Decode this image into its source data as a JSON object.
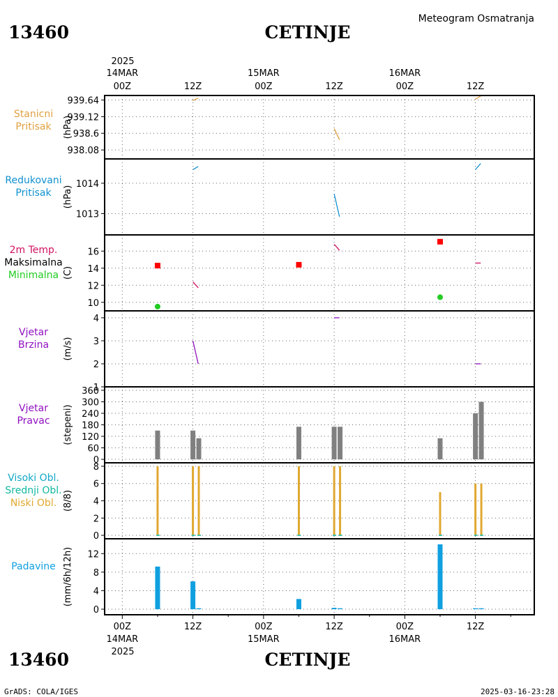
{
  "header": {
    "station_id": "13460",
    "station_name": "CETINJE",
    "subtitle": "Meteogram Osmatranja"
  },
  "footer": {
    "credit": "GrADS: COLA/IGES",
    "timestamp": "2025-03-16-23:28"
  },
  "time_axis": {
    "year": "2025",
    "labels": [
      {
        "t": 0,
        "hour": "00Z",
        "date": "14MAR"
      },
      {
        "t": 12,
        "hour": "12Z",
        "date": ""
      },
      {
        "t": 24,
        "hour": "00Z",
        "date": "15MAR"
      },
      {
        "t": 36,
        "hour": "12Z",
        "date": ""
      },
      {
        "t": 48,
        "hour": "00Z",
        "date": "16MAR"
      },
      {
        "t": 60,
        "hour": "12Z",
        "date": ""
      }
    ],
    "range_hours": [
      -3,
      70
    ]
  },
  "colors": {
    "pressure_station": "#e0a040",
    "pressure_reduced": "#1090d0",
    "temp_label": "#d01060",
    "temp_max": "#ff0000",
    "temp_min": "#22cc22",
    "wind": "#9010c0",
    "wind_dir_bar": "#808080",
    "cloud_high": "#10a8c8",
    "cloud_mid": "#10b8a0",
    "cloud_low": "#e0a830",
    "precip": "#10a0e0"
  },
  "chart_data": [
    {
      "type": "line",
      "panel": "stanicni-pritisak",
      "labels": [
        "Stanicni",
        "Pritisak"
      ],
      "ylabel": "(hPa)",
      "yticks": [
        939.64,
        939.12,
        938.6,
        938.08
      ],
      "ylim": [
        937.8,
        939.78
      ],
      "series": [
        {
          "x": [
            12.0,
            12.9
          ],
          "values": [
            939.62,
            939.7
          ]
        },
        {
          "x": [
            36.0,
            36.9
          ],
          "values": [
            938.75,
            938.4
          ]
        },
        {
          "x": [
            60.0,
            60.9
          ],
          "values": [
            939.67,
            939.76
          ]
        }
      ]
    },
    {
      "type": "line",
      "panel": "redukovani-pritisak",
      "labels": [
        "Redukovani",
        "Pritisak"
      ],
      "ylabel": "(hPa)",
      "yticks": [
        1014,
        1013
      ],
      "ylim": [
        1012.3,
        1014.8
      ],
      "series": [
        {
          "x": [
            12.0,
            12.9
          ],
          "values": [
            1014.45,
            1014.55
          ]
        },
        {
          "x": [
            36.0,
            36.9
          ],
          "values": [
            1013.65,
            1012.9
          ]
        },
        {
          "x": [
            60.0,
            60.9
          ],
          "values": [
            1014.45,
            1014.65
          ]
        }
      ]
    },
    {
      "type": "line",
      "panel": "temperatura",
      "labels": [
        "2m Temp.",
        "Maksimalna",
        "Minimalna"
      ],
      "ylabel": "(C)",
      "yticks": [
        16,
        14,
        12,
        10
      ],
      "ylim": [
        9.0,
        17.9
      ],
      "series": [
        {
          "x": [
            12.0,
            12.9
          ],
          "values": [
            12.4,
            11.7
          ]
        },
        {
          "x": [
            36.0,
            36.9
          ],
          "values": [
            16.8,
            16.1
          ]
        },
        {
          "x": [
            60.0,
            60.9
          ],
          "values": [
            14.6,
            14.6
          ]
        }
      ],
      "max_points": [
        {
          "x": 6.0,
          "value": 14.3
        },
        {
          "x": 30.0,
          "value": 14.4
        },
        {
          "x": 54.0,
          "value": 17.1
        }
      ],
      "min_points": [
        {
          "x": 6.0,
          "value": 9.5
        },
        {
          "x": 54.0,
          "value": 10.6
        }
      ]
    },
    {
      "type": "line",
      "panel": "vjetar-brzina",
      "labels": [
        "Vjetar",
        "Brzina"
      ],
      "ylabel": "(m/s)",
      "yticks": [
        4,
        3,
        2,
        1
      ],
      "ylim": [
        1.0,
        4.3
      ],
      "series": [
        {
          "x": [
            12.0,
            12.9
          ],
          "values": [
            3.0,
            2.0
          ]
        },
        {
          "x": [
            36.0,
            36.9
          ],
          "values": [
            4.0,
            4.0
          ]
        },
        {
          "x": [
            60.0,
            60.9
          ],
          "values": [
            2.0,
            2.0
          ]
        }
      ]
    },
    {
      "type": "bar",
      "panel": "vjetar-pravac",
      "labels": [
        "Vjetar",
        "Pravac"
      ],
      "ylabel": "(stepeni)",
      "yticks": [
        360,
        300,
        240,
        180,
        120,
        60,
        0
      ],
      "ylim": [
        -18,
        378
      ],
      "bars": [
        {
          "x": 6,
          "value": 150
        },
        {
          "x": 12,
          "value": 150
        },
        {
          "x": 13,
          "value": 110
        },
        {
          "x": 30,
          "value": 170
        },
        {
          "x": 36,
          "value": 170
        },
        {
          "x": 37,
          "value": 170
        },
        {
          "x": 54,
          "value": 110
        },
        {
          "x": 60,
          "value": 240
        },
        {
          "x": 61,
          "value": 300
        }
      ]
    },
    {
      "type": "bar",
      "panel": "oblacnost",
      "labels": [
        "Visoki Obl.",
        "Srednji Obl.",
        "Niski Obl."
      ],
      "ylabel": "(8/8)",
      "yticks": [
        8,
        6,
        4,
        2,
        0
      ],
      "ylim": [
        -0.4,
        8.4
      ],
      "bars": [
        {
          "x": 6,
          "value": 8
        },
        {
          "x": 12,
          "value": 8
        },
        {
          "x": 13,
          "value": 8
        },
        {
          "x": 30,
          "value": 8
        },
        {
          "x": 36,
          "value": 8
        },
        {
          "x": 37,
          "value": 8
        },
        {
          "x": 54,
          "value": 5
        },
        {
          "x": 60,
          "value": 6
        },
        {
          "x": 61,
          "value": 6
        }
      ]
    },
    {
      "type": "bar",
      "panel": "padavine",
      "labels": [
        "Padavine"
      ],
      "ylabel": "(mm/6h/12h)",
      "yticks": [
        12,
        8,
        4,
        0
      ],
      "ylim": [
        -1.2,
        15.2
      ],
      "bars": [
        {
          "x": 6,
          "value": 9.2
        },
        {
          "x": 12,
          "value": 6.0
        },
        {
          "x": 13,
          "value": 0.2
        },
        {
          "x": 30,
          "value": 2.2
        },
        {
          "x": 36,
          "value": 0.3
        },
        {
          "x": 37,
          "value": 0.2
        },
        {
          "x": 54,
          "value": 14.0
        },
        {
          "x": 60,
          "value": 0.2
        },
        {
          "x": 61,
          "value": 0.2
        }
      ]
    }
  ]
}
